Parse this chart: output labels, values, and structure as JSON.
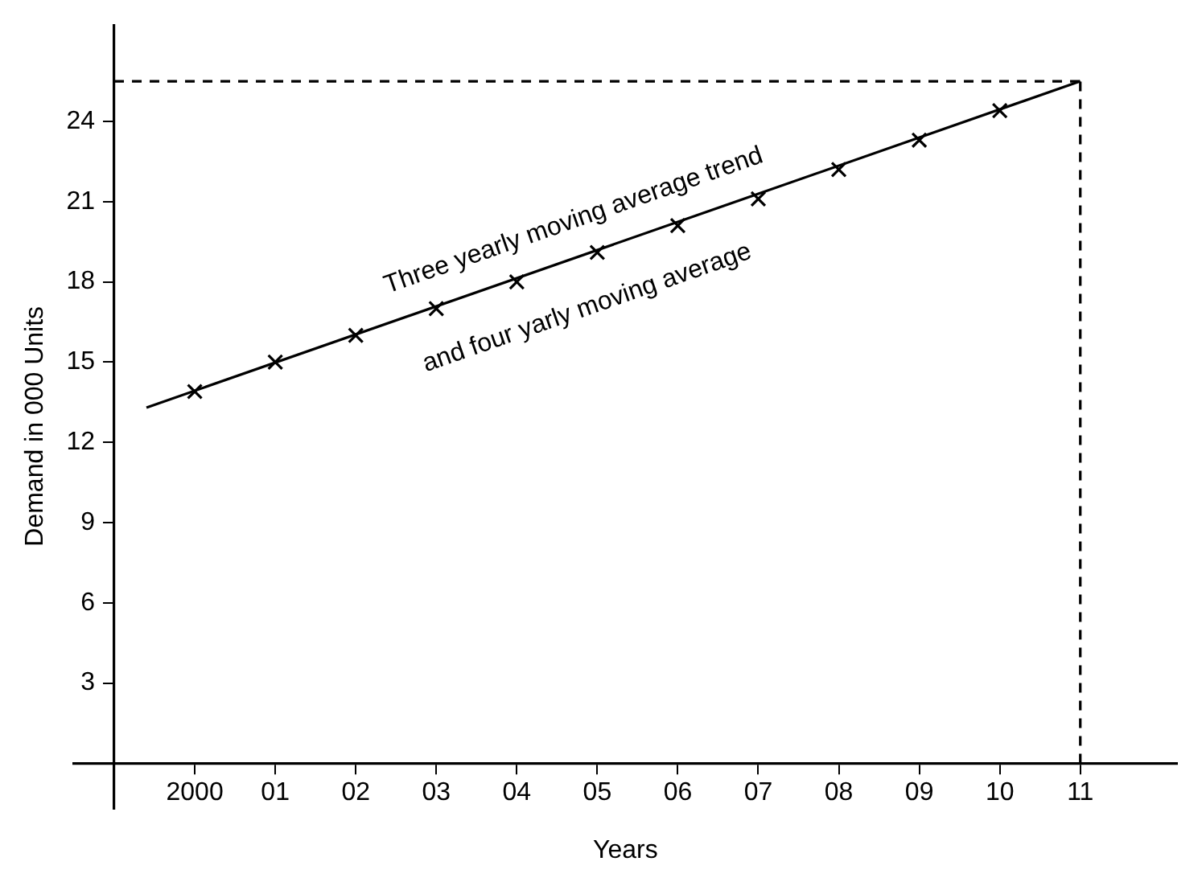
{
  "chart_data": {
    "type": "line",
    "xlabel": "Years",
    "ylabel": "Demand in 000 Units",
    "xlim": [
      1998.5,
      2012.2
    ],
    "ylim": [
      -1.7,
      27.6
    ],
    "xticks": [
      {
        "value": 2000,
        "label": "2000"
      },
      {
        "value": 2001,
        "label": "01"
      },
      {
        "value": 2002,
        "label": "02"
      },
      {
        "value": 2003,
        "label": "03"
      },
      {
        "value": 2004,
        "label": "04"
      },
      {
        "value": 2005,
        "label": "05"
      },
      {
        "value": 2006,
        "label": "06"
      },
      {
        "value": 2007,
        "label": "07"
      },
      {
        "value": 2008,
        "label": "08"
      },
      {
        "value": 2009,
        "label": "09"
      },
      {
        "value": 2010,
        "label": "10"
      },
      {
        "value": 2011,
        "label": "11"
      }
    ],
    "yticks": [
      3,
      6,
      9,
      12,
      15,
      18,
      21,
      24
    ],
    "grid": false,
    "series": [
      {
        "type": "line",
        "color": "#000000",
        "marker": "none",
        "x": [
          1999.4,
          2011
        ],
        "values": [
          13.3,
          25.5
        ]
      },
      {
        "type": "scatter",
        "color": "#000000",
        "marker": "cross",
        "x": [
          2000,
          2001,
          2002,
          2003,
          2004,
          2005,
          2006,
          2007,
          2008,
          2009,
          2010
        ],
        "values": [
          13.9,
          15.0,
          16.0,
          17.0,
          18.0,
          19.1,
          20.1,
          21.1,
          22.2,
          23.3,
          24.4
        ]
      }
    ],
    "ref_lines": [
      {
        "axis": "y",
        "value": 25.5,
        "line_style": "dashed",
        "color": "#000000"
      },
      {
        "axis": "x",
        "value": 2011,
        "line_style": "dashed",
        "color": "#000000"
      }
    ],
    "annotations": [
      "Three yearly moving average trend",
      "and four yarly moving average"
    ]
  }
}
